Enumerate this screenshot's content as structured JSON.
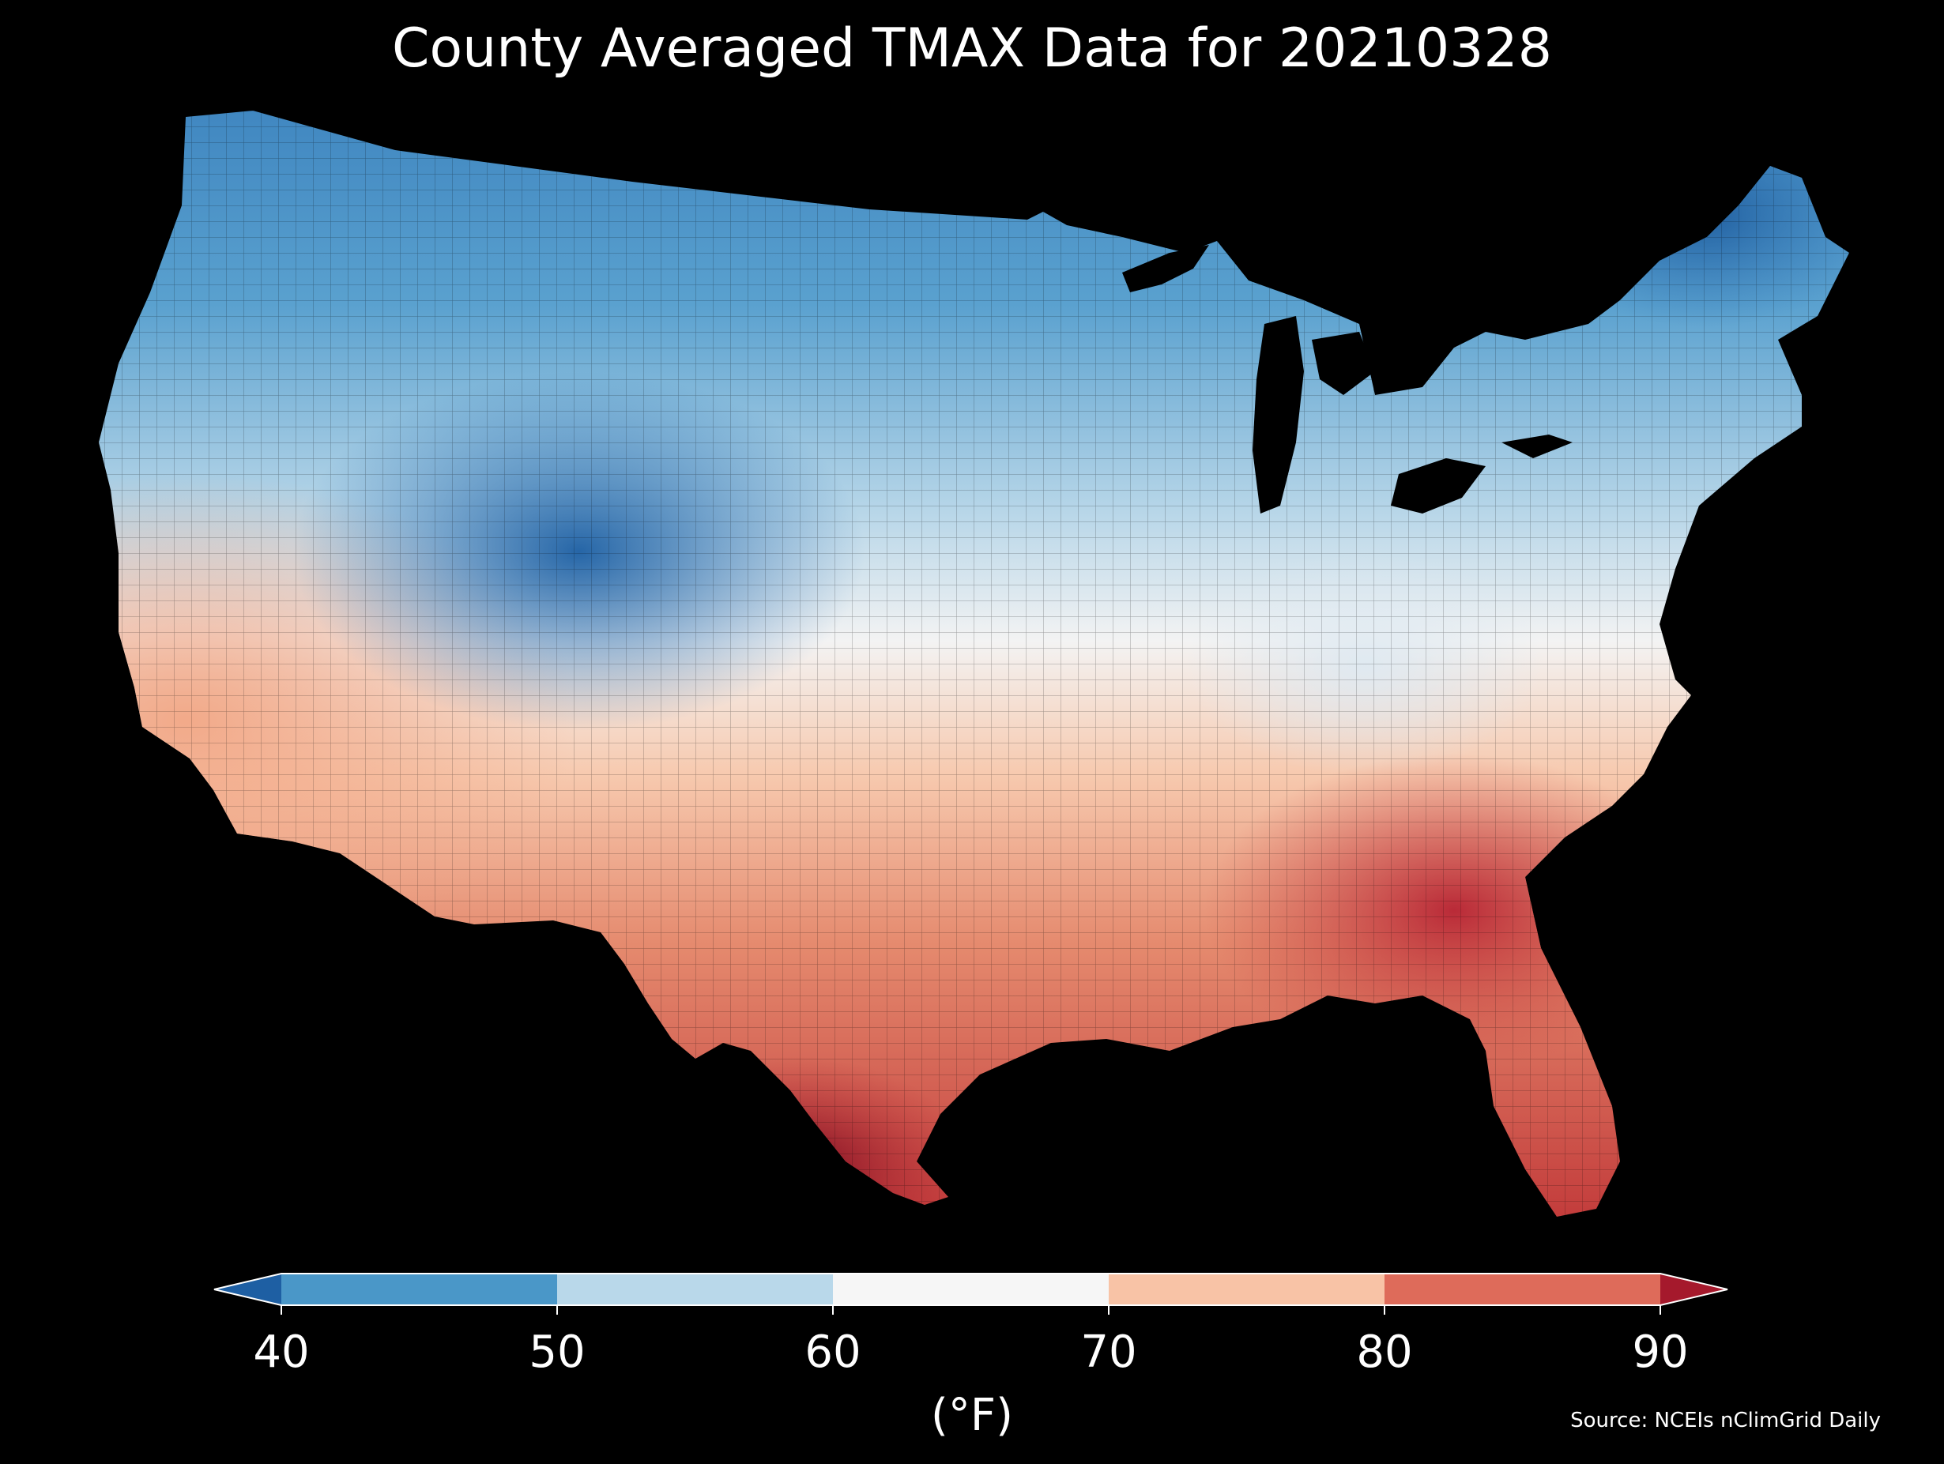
{
  "title": "County Averaged TMAX Data for 20210328",
  "colorbar": {
    "ticks": [
      "40",
      "50",
      "60",
      "70",
      "80",
      "90"
    ],
    "unit": "(°F)",
    "bins": [
      {
        "from": 40,
        "to": 50,
        "color": "#4a97c8"
      },
      {
        "from": 50,
        "to": 60,
        "color": "#b9d8ea"
      },
      {
        "from": 60,
        "to": 70,
        "color": "#f6f6f6"
      },
      {
        "from": 70,
        "to": 80,
        "color": "#f8c3a6"
      },
      {
        "from": 80,
        "to": 90,
        "color": "#de6b5a"
      }
    ],
    "extend_low_color": "#1e5fa3",
    "extend_high_color": "#a5192c"
  },
  "source": "Source: NCEIs nClimGrid Daily"
}
